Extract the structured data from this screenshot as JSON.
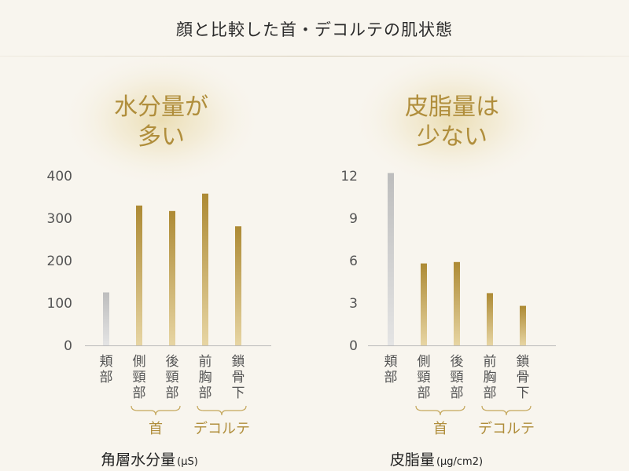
{
  "page": {
    "title": "顔と比較した首・デコルテの肌状態"
  },
  "chart_data": [
    {
      "type": "bar",
      "headline": [
        "水分量が",
        "多い"
      ],
      "title": "角層水分量",
      "unit": "(μS)",
      "categories": [
        "頬部",
        "側頸部",
        "後頸部",
        "前胸部",
        "鎖骨下"
      ],
      "values": [
        125,
        330,
        317,
        358,
        281
      ],
      "ylim": [
        0,
        400
      ],
      "yticks": [
        0,
        100,
        200,
        300,
        400
      ],
      "groups": [
        {
          "label": "首",
          "categories": [
            "側頸部",
            "後頸部"
          ]
        },
        {
          "label": "デコルテ",
          "categories": [
            "前胸部",
            "鎖骨下"
          ]
        }
      ],
      "colors": {
        "reference": "#c8c8c8",
        "highlight": "#b08e3c"
      }
    },
    {
      "type": "bar",
      "headline": [
        "皮脂量は",
        "少ない"
      ],
      "title": "皮脂量",
      "unit": "(μg/cm2)",
      "categories": [
        "頬部",
        "側頸部",
        "後頸部",
        "前胸部",
        "鎖骨下"
      ],
      "values": [
        12.2,
        5.8,
        5.9,
        3.7,
        2.8
      ],
      "ylim": [
        0,
        12
      ],
      "yticks": [
        0,
        3,
        6,
        9,
        12
      ],
      "groups": [
        {
          "label": "首",
          "categories": [
            "側頸部",
            "後頸部"
          ]
        },
        {
          "label": "デコルテ",
          "categories": [
            "前胸部",
            "鎖骨下"
          ]
        }
      ],
      "colors": {
        "reference": "#c8c8c8",
        "highlight": "#b08e3c"
      }
    }
  ]
}
